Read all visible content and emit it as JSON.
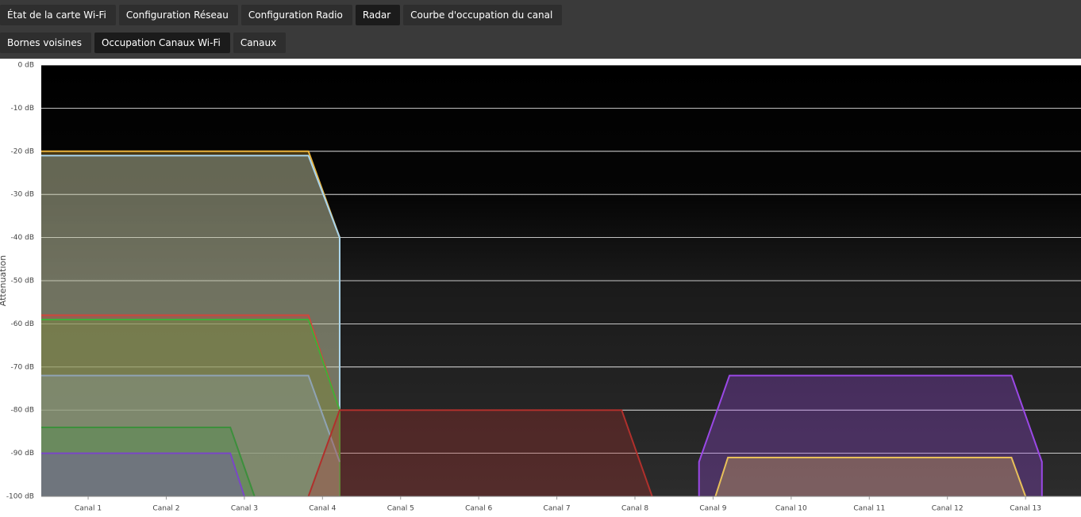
{
  "tabs": {
    "row1": [
      "État de la carte Wi-Fi",
      "Configuration Réseau",
      "Configuration Radio",
      "Radar",
      "Courbe d'occupation du canal"
    ],
    "row2": [
      "Bornes voisines",
      "Occupation Canaux Wi-Fi",
      "Canaux"
    ]
  },
  "chart_data": {
    "type": "area",
    "ylabel": "Attenuation",
    "xlim": [
      0.4,
      13.71
    ],
    "xticks": [
      {
        "value": 1,
        "label": "Canal 1"
      },
      {
        "value": 2,
        "label": "Canal 2"
      },
      {
        "value": 3,
        "label": "Canal 3"
      },
      {
        "value": 4,
        "label": "Canal 4"
      },
      {
        "value": 5,
        "label": "Canal 5"
      },
      {
        "value": 6,
        "label": "Canal 6"
      },
      {
        "value": 7,
        "label": "Canal 7"
      },
      {
        "value": 8,
        "label": "Canal 8"
      },
      {
        "value": 9,
        "label": "Canal 9"
      },
      {
        "value": 10,
        "label": "Canal 10"
      },
      {
        "value": 11,
        "label": "Canal 11"
      },
      {
        "value": 12,
        "label": "Canal 12"
      },
      {
        "value": 13,
        "label": "Canal 13"
      }
    ],
    "ylim": [
      -100,
      0
    ],
    "yticks": [
      {
        "value": 0,
        "label": "0 dB"
      },
      {
        "value": -10,
        "label": "-10 dB"
      },
      {
        "value": -20,
        "label": "-20 dB"
      },
      {
        "value": -30,
        "label": "-30 dB"
      },
      {
        "value": -40,
        "label": "-40 dB"
      },
      {
        "value": -50,
        "label": "-50 dB"
      },
      {
        "value": -60,
        "label": "-60 dB"
      },
      {
        "value": -70,
        "label": "-70 dB"
      },
      {
        "value": -80,
        "label": "-80 dB"
      },
      {
        "value": -90,
        "label": "-90 dB"
      },
      {
        "value": -100,
        "label": "-100 dB"
      }
    ],
    "grid": true,
    "series": [
      {
        "color": "#e8b23c",
        "x": [
          0.4,
          3.82,
          4.22,
          4.22
        ],
        "values": [
          -20,
          -20,
          -40,
          -100
        ]
      },
      {
        "color": "#a9d4ec",
        "x": [
          0.4,
          3.82,
          4.22,
          4.22
        ],
        "values": [
          -21,
          -21,
          -40,
          -100
        ]
      },
      {
        "color": "#d0453c",
        "x": [
          0.4,
          3.82,
          4.22,
          4.22
        ],
        "values": [
          -58,
          -58,
          -80,
          -100
        ]
      },
      {
        "color": "#3fae3a",
        "x": [
          0.4,
          3.82,
          4.22,
          4.22
        ],
        "values": [
          -59,
          -59,
          -80,
          -100
        ]
      },
      {
        "color": "#8fa3b4",
        "x": [
          0.4,
          3.82,
          4.22
        ],
        "values": [
          -72,
          -72,
          -92
        ]
      },
      {
        "color": "#3c8f3c",
        "x": [
          0.4,
          2.82,
          3.13
        ],
        "values": [
          -84,
          -84,
          -100
        ]
      },
      {
        "color": "#7a46c8",
        "x": [
          0.4,
          2.82,
          3.0
        ],
        "values": [
          -90,
          -90,
          -100
        ]
      },
      {
        "color": "#b0302c",
        "x": [
          3.82,
          4.22,
          7.83,
          8.22
        ],
        "values": [
          -100,
          -80,
          -80,
          -100
        ]
      },
      {
        "color": "#9a48e6",
        "x": [
          8.82,
          8.82,
          9.21,
          12.82,
          13.21,
          13.21
        ],
        "values": [
          -100,
          -92,
          -72,
          -72,
          -92,
          -100
        ]
      },
      {
        "color": "#e8c05a",
        "x": [
          9.03,
          9.19,
          12.82,
          13.0
        ],
        "values": [
          -100,
          -91,
          -91,
          -100
        ]
      }
    ]
  }
}
